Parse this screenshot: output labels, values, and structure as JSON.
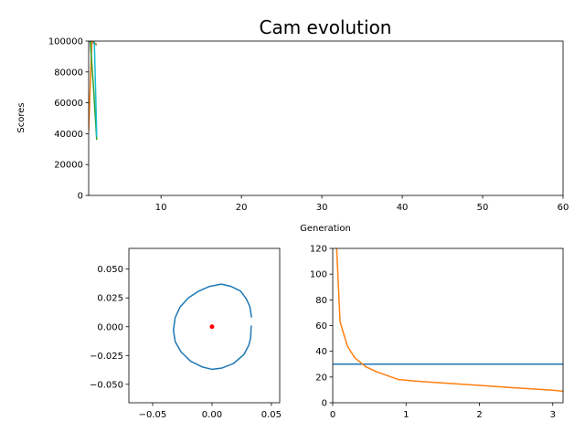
{
  "chart_data": [
    {
      "type": "line",
      "title": "Cam evolution",
      "xlabel": "Generation",
      "ylabel": "Scores",
      "xlim": [
        1,
        60
      ],
      "ylim": [
        0,
        100000
      ],
      "xticks": [
        10,
        20,
        30,
        40,
        50,
        60
      ],
      "yticks": [
        0,
        20000,
        40000,
        60000,
        80000,
        100000
      ],
      "grid": false,
      "series": [
        {
          "color": "#1f77b4",
          "x": [
            1,
            1.5,
            2
          ],
          "y": [
            100000,
            99000,
            97500
          ]
        },
        {
          "color": "#ff7f0e",
          "x": [
            1,
            1.4,
            2
          ],
          "y": [
            42000,
            100000,
            98000
          ]
        },
        {
          "color": "#2ca02c",
          "x": [
            1.2,
            1.6,
            2
          ],
          "y": [
            100000,
            70000,
            36000
          ]
        },
        {
          "color": "#17becf",
          "x": [
            1.7,
            1.9,
            2
          ],
          "y": [
            100000,
            60000,
            38000
          ]
        }
      ]
    },
    {
      "type": "line",
      "title": "",
      "xlabel": "",
      "ylabel": "",
      "aspect": "equal",
      "xlim": [
        -0.07,
        0.057
      ],
      "ylim": [
        -0.066,
        0.068
      ],
      "xticks": [
        -0.05,
        0,
        0.05
      ],
      "xtick_labels": [
        "−0.05",
        "0.00",
        "0.05"
      ],
      "yticks": [
        -0.05,
        -0.025,
        0,
        0.025,
        0.05
      ],
      "ytick_labels": [
        "−0.050",
        "−0.025",
        "0.000",
        "0.025",
        "0.050"
      ],
      "series": [
        {
          "color": "#1f77b4",
          "x": [
            0.033,
            0.0325,
            0.031,
            0.027,
            0.018,
            0.008,
            0.0,
            -0.008,
            -0.018,
            -0.026,
            -0.031,
            -0.0325,
            -0.031,
            -0.027,
            -0.02,
            -0.011,
            -0.002,
            0.008,
            0.016,
            0.024,
            0.029,
            0.032,
            0.0333
          ],
          "y": [
            0.001,
            -0.01,
            -0.016,
            -0.024,
            -0.032,
            -0.036,
            -0.037,
            -0.035,
            -0.03,
            -0.022,
            -0.013,
            -0.003,
            0.008,
            0.017,
            0.025,
            0.031,
            0.035,
            0.037,
            0.035,
            0.031,
            0.024,
            0.017,
            0.008
          ]
        },
        {
          "color": "#ff0000",
          "marker": "point",
          "x": [
            0.0
          ],
          "y": [
            0.0
          ]
        }
      ]
    },
    {
      "type": "line",
      "title": "",
      "xlabel": "",
      "ylabel": "",
      "xlim": [
        0,
        3.14
      ],
      "ylim": [
        0,
        120
      ],
      "xticks": [
        0,
        1,
        2,
        3
      ],
      "yticks": [
        0,
        20,
        40,
        60,
        80,
        100,
        120
      ],
      "series": [
        {
          "color": "#1f77b4",
          "x": [
            0,
            3.14
          ],
          "y": [
            30,
            30
          ]
        },
        {
          "color": "#ff7f0e",
          "x": [
            0.05,
            0.1,
            0.2,
            0.3,
            0.45,
            0.6,
            0.9,
            1.2,
            1.6,
            2.0,
            2.5,
            3.0,
            3.14
          ],
          "y": [
            125,
            63,
            44,
            35,
            28,
            24,
            18,
            16.5,
            15,
            13.5,
            11.5,
            9.8,
            9
          ]
        }
      ]
    }
  ]
}
